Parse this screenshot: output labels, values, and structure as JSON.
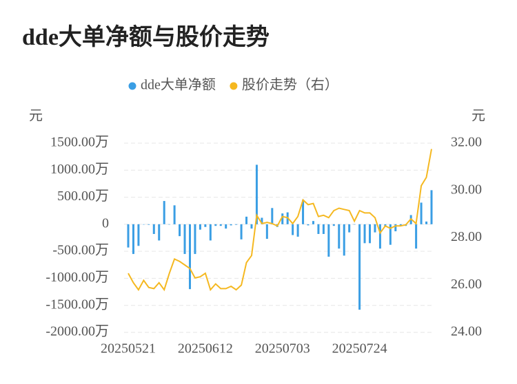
{
  "chart_data": {
    "type": "bar_line",
    "title": "dde大单净额与股价走势",
    "y_label": "元",
    "y2_label": "元",
    "categories": [
      "20250521",
      null,
      null,
      null,
      null,
      null,
      null,
      null,
      null,
      null,
      null,
      null,
      null,
      null,
      null,
      "20250612",
      null,
      null,
      null,
      null,
      null,
      null,
      null,
      null,
      null,
      null,
      null,
      null,
      null,
      null,
      "20250703",
      null,
      null,
      null,
      null,
      null,
      null,
      null,
      null,
      null,
      null,
      null,
      null,
      null,
      null,
      "20250724",
      null,
      null,
      null,
      null,
      null,
      null,
      null,
      null,
      null,
      null,
      null,
      null,
      null,
      null
    ],
    "series": [
      {
        "name": "dde大单净额",
        "type": "bar",
        "color": "#3a9ee4",
        "axis": "y",
        "values": [
          -430,
          -550,
          -400,
          0,
          -10,
          -180,
          -300,
          430,
          0,
          350,
          -220,
          -550,
          -1200,
          -550,
          -100,
          -50,
          -300,
          -30,
          -30,
          -80,
          -20,
          -10,
          -280,
          140,
          -80,
          1100,
          120,
          -270,
          300,
          -50,
          200,
          220,
          -200,
          -230,
          450,
          -20,
          60,
          -180,
          -180,
          -600,
          -30,
          -450,
          -580,
          -150,
          0,
          -1580,
          -350,
          -350,
          -150,
          -450,
          -50,
          -380,
          -130,
          -20,
          -30,
          170,
          -450,
          400,
          50,
          630
        ]
      },
      {
        "name": "股价走势（右）",
        "type": "line",
        "color": "#f5b820",
        "axis": "y2",
        "values": [
          26.5,
          26.1,
          25.8,
          26.2,
          25.9,
          25.85,
          26.1,
          25.8,
          26.5,
          27.1,
          27.0,
          26.85,
          26.7,
          26.3,
          26.35,
          26.5,
          25.8,
          26.05,
          25.85,
          25.85,
          25.95,
          25.8,
          26.0,
          26.95,
          27.25,
          28.95,
          28.6,
          28.65,
          28.6,
          28.5,
          28.9,
          28.85,
          28.6,
          28.9,
          29.6,
          29.4,
          29.45,
          28.9,
          28.95,
          28.85,
          29.15,
          29.25,
          29.2,
          29.15,
          28.7,
          29.15,
          29.05,
          29.05,
          28.85,
          28.2,
          28.5,
          28.4,
          28.5,
          28.5,
          28.55,
          28.8,
          28.6,
          30.2,
          30.55,
          31.75
        ]
      }
    ],
    "ylim": [
      -2000,
      1500
    ],
    "yticks": [
      {
        "value": -2000,
        "label": "-2000.00万"
      },
      {
        "value": -1500,
        "label": "-1500.00万"
      },
      {
        "value": -1000,
        "label": "-1000.00万"
      },
      {
        "value": -500,
        "label": "-500.00万"
      },
      0,
      {
        "value": 500,
        "label": "500.00万"
      },
      {
        "value": 1000,
        "label": "1000.00万"
      },
      {
        "value": 1500,
        "label": "1500.00万"
      }
    ],
    "y2lim": [
      24,
      32
    ],
    "y2ticks": [
      {
        "value": 24,
        "label": "24.00"
      },
      {
        "value": 26,
        "label": "26.00"
      },
      {
        "value": 28,
        "label": "28.00"
      },
      {
        "value": 30,
        "label": "30.00"
      },
      {
        "value": 32,
        "label": "32.00"
      }
    ],
    "grid": true
  }
}
